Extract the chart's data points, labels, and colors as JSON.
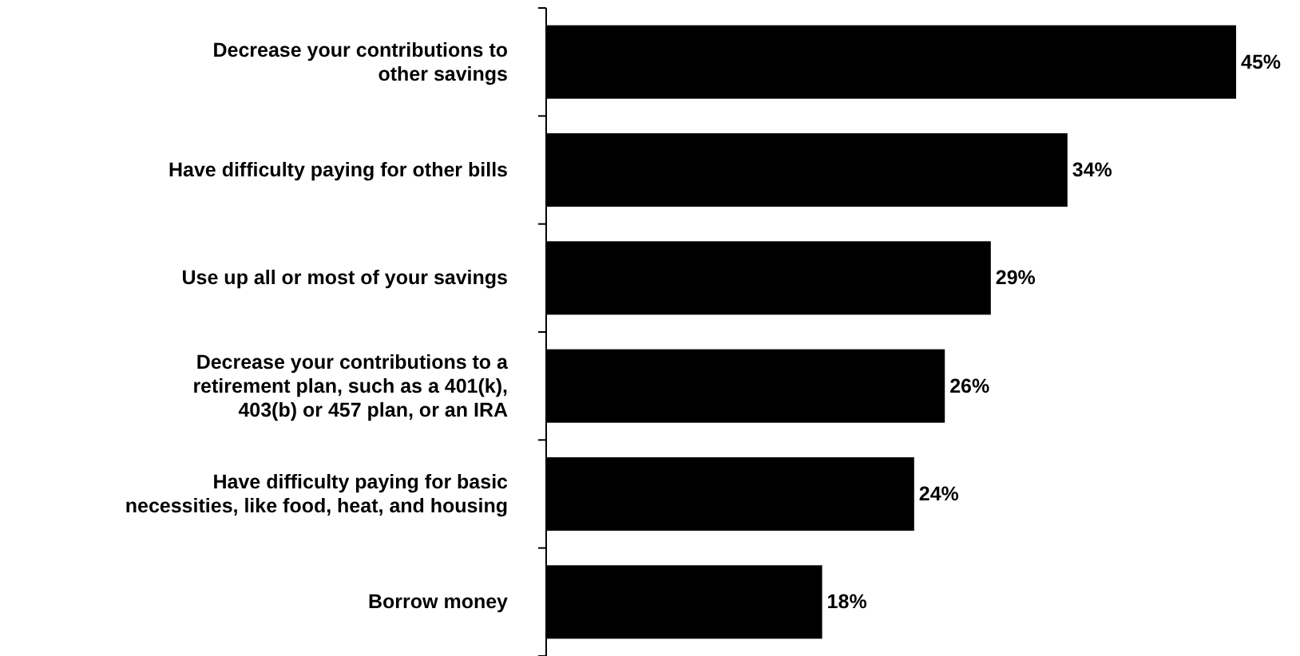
{
  "chart_data": {
    "type": "bar",
    "orientation": "horizontal",
    "categories": [
      "Decrease your contributions to\nother savings",
      "Have difficulty paying for other bills",
      "Use up all or most of your savings",
      "Decrease your contributions to a\nretirement plan, such as a 401(k),\n403(b) or 457 plan, or an IRA",
      "Have difficulty paying for basic\nnecessities, like food, heat, and housing",
      "Borrow money"
    ],
    "values": [
      45,
      34,
      29,
      26,
      24,
      18
    ],
    "value_labels": [
      "45%",
      "34%",
      "29%",
      "26%",
      "24%",
      "18%"
    ],
    "color": "#000000"
  }
}
